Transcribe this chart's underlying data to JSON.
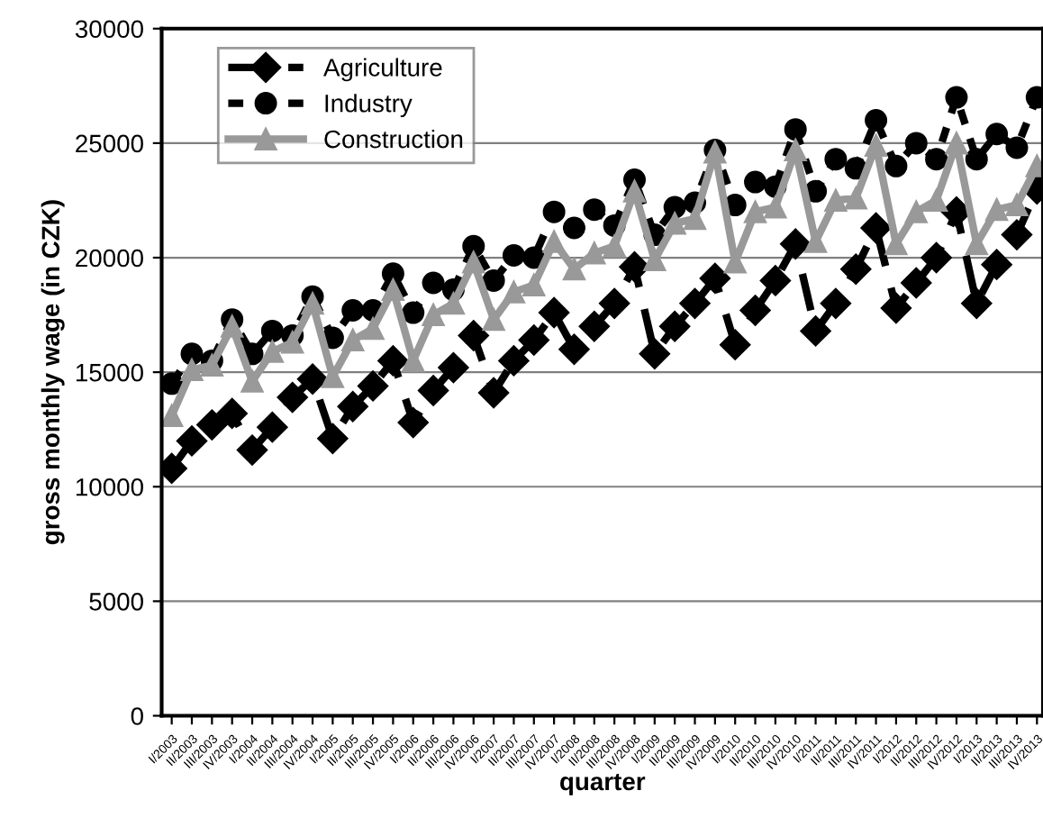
{
  "chart_data": {
    "type": "line",
    "xlabel": "quarter",
    "ylabel": "gross monthly wage (in CZK)",
    "categories": [
      "I/2003",
      "II/2003",
      "III/2003",
      "IV/2003",
      "I/2004",
      "II/2004",
      "III/2004",
      "IV/2004",
      "I/2005",
      "II/2005",
      "III/2005",
      "IV/2005",
      "I/2006",
      "II/2006",
      "III/2006",
      "IV/2006",
      "I/2007",
      "II/2007",
      "III/2007",
      "IV/2007",
      "I/2008",
      "II/2008",
      "III/2008",
      "IV/2008",
      "I/2009",
      "II/2009",
      "III/2009",
      "IV/2009",
      "I/2010",
      "II/2010",
      "III/2010",
      "IV/2010",
      "I/2011",
      "II/2011",
      "III/2011",
      "IV/2011",
      "I/2012",
      "II/2012",
      "III/2012",
      "IV/2012",
      "I/2013",
      "II/2013",
      "III/2013",
      "IV/2013"
    ],
    "series": [
      {
        "name": "Agriculture",
        "color": "#000000",
        "marker": "diamond",
        "line_style": "dashed",
        "values": [
          10800,
          12000,
          12700,
          13200,
          11600,
          12600,
          13900,
          14700,
          12100,
          13500,
          14400,
          15500,
          12800,
          14200,
          15200,
          16600,
          14100,
          15500,
          16400,
          17600,
          16000,
          17000,
          18000,
          19600,
          15800,
          17000,
          18000,
          19100,
          16200,
          17700,
          19000,
          20600,
          16800,
          18000,
          19500,
          21300,
          17800,
          18900,
          20000,
          22000,
          18000,
          19700,
          21000,
          23000
        ]
      },
      {
        "name": "Industry",
        "color": "#000000",
        "marker": "circle",
        "line_style": "dotted",
        "values": [
          14500,
          15800,
          15500,
          17300,
          15800,
          16800,
          16600,
          18300,
          16500,
          17700,
          17700,
          19300,
          17600,
          18900,
          18600,
          20500,
          19000,
          20100,
          20000,
          22000,
          21300,
          22100,
          21400,
          23400,
          21000,
          22200,
          22400,
          24700,
          22300,
          23300,
          23100,
          25600,
          22900,
          24300,
          23900,
          26000,
          24000,
          25000,
          24300,
          27000,
          24300,
          25400,
          24800,
          27000
        ]
      },
      {
        "name": "Construction",
        "color": "#999999",
        "marker": "triangle",
        "line_style": "solid",
        "values": [
          13100,
          15100,
          15300,
          17000,
          14600,
          15900,
          16300,
          18000,
          14800,
          16400,
          16900,
          18600,
          15500,
          17500,
          18000,
          19800,
          17300,
          18500,
          18800,
          20700,
          19500,
          20200,
          20500,
          22900,
          19900,
          21500,
          21700,
          24600,
          19800,
          22000,
          22200,
          24700,
          20700,
          22500,
          22600,
          24900,
          20600,
          22000,
          22500,
          25000,
          20600,
          22100,
          22300,
          24000
        ]
      }
    ],
    "ylim": [
      0,
      30000
    ],
    "yticks": [
      0,
      5000,
      10000,
      15000,
      20000,
      25000,
      30000
    ],
    "grid": "y",
    "legend": "top left"
  }
}
